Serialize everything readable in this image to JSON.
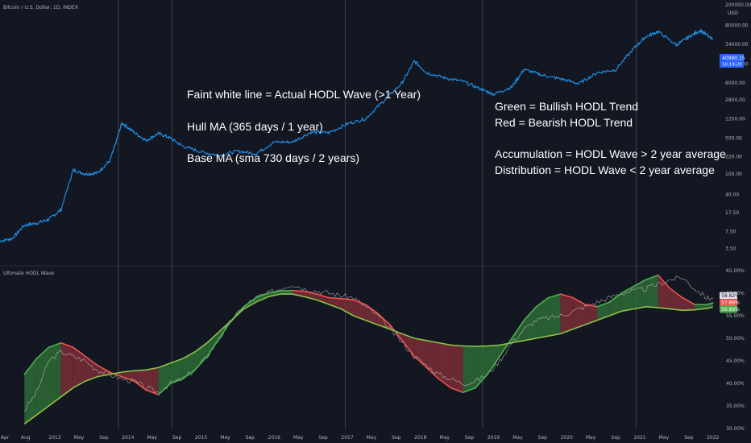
{
  "header": {
    "symbol_title": "Bitcoin / U.S. Dollar, 1D, INDEX",
    "currency": "USD"
  },
  "price_pane": {
    "price_axis_labels": [
      "200000.00",
      "80000.00",
      "34000.00",
      "14000.00",
      "6000.00",
      "2800.00",
      "1200.00",
      "500.00",
      "220.00",
      "100.00",
      "40.00",
      "17.50",
      "7.50",
      "3.50"
    ],
    "price_badge_value": "40990.15",
    "price_badge_time": "10:19:20",
    "price_badge_color": "#2962ff"
  },
  "indicator_pane": {
    "title": "Ultimate HODL Wave",
    "axis_labels": [
      "65.00%",
      "60.00%",
      "55.00%",
      "50.00%",
      "45.00%",
      "40.00%",
      "35.00%",
      "30.00%"
    ],
    "badges": [
      {
        "label": "58.82%",
        "bg": "#e0e3eb",
        "fg": "#131722"
      },
      {
        "label": "57.86%",
        "bg": "#ef5350",
        "fg": "#ffffff"
      },
      {
        "label": "56.89%",
        "bg": "#4caf50",
        "fg": "#ffffff"
      }
    ]
  },
  "annotations": {
    "left": [
      "Faint white line = Actual HODL Wave (>1 Year)",
      "Hull MA (365 days / 1 year)",
      "Base MA (sma 730 days / 2 years)"
    ],
    "right": [
      "Green = Bullish HODL Trend",
      "Red = Bearish HODL Trend",
      "Accumulation = HODL Wave > 2 year average",
      "Distribution = HODL Wave < 2 year average"
    ]
  },
  "time_axis": {
    "labels": [
      "Apr",
      "Aug",
      "2013",
      "May",
      "Sep",
      "2014",
      "May",
      "Sep",
      "2015",
      "May",
      "Sep",
      "2016",
      "May",
      "Sep",
      "2017",
      "May",
      "Sep",
      "2018",
      "May",
      "Sep",
      "2019",
      "May",
      "Sep",
      "2020",
      "May",
      "Sep",
      "2021",
      "May",
      "Sep",
      "2022"
    ]
  },
  "colors": {
    "background": "#131722",
    "price_line": "#2196f3",
    "hull_bull": "#4caf50",
    "hull_bear": "#ef5350",
    "fill_bull": "#2e6b35",
    "fill_bear": "#7a2d36",
    "hodl_line": "#c9c9c9",
    "vertical_lines": "#5d606b"
  },
  "chart_data": [
    {
      "type": "line",
      "title": "Bitcoin / U.S. Dollar, 1D, INDEX",
      "scale": "log",
      "ylim": [
        2.5,
        200000
      ],
      "x": [
        "2012-04",
        "2012-06",
        "2012-08",
        "2012-10",
        "2012-12",
        "2013-02",
        "2013-04",
        "2013-06",
        "2013-08",
        "2013-10",
        "2013-11",
        "2013-12",
        "2014-02",
        "2014-04",
        "2014-06",
        "2014-08",
        "2014-10",
        "2015-01",
        "2015-04",
        "2015-07",
        "2015-10",
        "2016-01",
        "2016-04",
        "2016-07",
        "2016-10",
        "2017-01",
        "2017-04",
        "2017-07",
        "2017-10",
        "2017-12",
        "2018-02",
        "2018-05",
        "2018-08",
        "2018-11",
        "2019-01",
        "2019-04",
        "2019-06",
        "2019-09",
        "2019-12",
        "2020-03",
        "2020-06",
        "2020-09",
        "2020-12",
        "2021-02",
        "2021-04",
        "2021-07",
        "2021-09",
        "2021-11",
        "2022-01"
      ],
      "values": [
        4.9,
        5.5,
        10,
        11,
        13,
        20,
        120,
        100,
        105,
        180,
        400,
        1000,
        650,
        450,
        620,
        500,
        350,
        270,
        230,
        280,
        250,
        420,
        420,
        650,
        640,
        950,
        1200,
        2700,
        6000,
        16000,
        9500,
        7500,
        6400,
        4500,
        3600,
        5000,
        11000,
        8500,
        7200,
        5800,
        9500,
        10800,
        28000,
        48000,
        60000,
        33000,
        47000,
        64000,
        40990
      ]
    },
    {
      "type": "line",
      "title": "Ultimate HODL Wave",
      "ylim": [
        30,
        65
      ],
      "x": [
        "2012-08",
        "2012-10",
        "2012-12",
        "2013-02",
        "2013-04",
        "2013-06",
        "2013-08",
        "2013-10",
        "2013-12",
        "2014-02",
        "2014-04",
        "2014-06",
        "2014-08",
        "2014-10",
        "2014-12",
        "2015-02",
        "2015-04",
        "2015-06",
        "2015-08",
        "2015-10",
        "2015-12",
        "2016-02",
        "2016-04",
        "2016-06",
        "2016-08",
        "2016-10",
        "2016-12",
        "2017-02",
        "2017-04",
        "2017-06",
        "2017-08",
        "2017-10",
        "2017-12",
        "2018-02",
        "2018-04",
        "2018-06",
        "2018-08",
        "2018-10",
        "2018-12",
        "2019-02",
        "2019-04",
        "2019-06",
        "2019-08",
        "2019-10",
        "2019-12",
        "2020-02",
        "2020-04",
        "2020-06",
        "2020-08",
        "2020-10",
        "2020-12",
        "2021-02",
        "2021-04",
        "2021-06",
        "2021-08",
        "2021-10",
        "2021-12",
        "2022-01"
      ],
      "series": [
        {
          "name": "Faint white line = Actual HODL Wave (>1 Year)",
          "values": [
            34,
            38,
            45,
            47,
            46,
            45,
            43,
            42,
            41,
            40.5,
            39,
            38,
            40,
            41,
            43,
            46,
            50,
            54,
            57,
            59,
            60,
            61,
            62,
            61,
            60.5,
            60,
            59.5,
            59,
            57,
            55,
            52,
            49,
            46,
            44,
            42,
            41,
            40,
            40.5,
            42,
            45,
            49,
            52,
            54,
            54.5,
            55,
            56,
            57,
            58,
            59,
            60,
            60.5,
            61,
            62,
            63,
            63.5,
            61,
            59,
            58.8
          ]
        },
        {
          "name": "Hull MA (365 days / 1 year)",
          "values": [
            42,
            45.5,
            48,
            49,
            48,
            46,
            44,
            42.5,
            41.5,
            40.5,
            38.5,
            37.5,
            40,
            41,
            43,
            46,
            50,
            54,
            57,
            59,
            60,
            60.5,
            60.6,
            60.4,
            59.8,
            59,
            58.8,
            58.5,
            57.5,
            55.5,
            53,
            49.5,
            46,
            43.5,
            41,
            39,
            38,
            39,
            42,
            46,
            50,
            54,
            57,
            59,
            59.8,
            59,
            57.5,
            57,
            58,
            60,
            61.5,
            63,
            64,
            61,
            59,
            57.5,
            57.5,
            57.86
          ]
        },
        {
          "name": "Base MA (sma 730 days / 2 years)",
          "values": [
            31,
            33,
            35,
            37,
            39,
            40.5,
            41.5,
            42,
            42.5,
            42.8,
            43,
            43.5,
            44.5,
            45.5,
            47,
            49,
            51.5,
            54,
            56.5,
            58,
            59.2,
            59.8,
            59.8,
            59.2,
            58.5,
            57.5,
            56.5,
            55,
            54,
            53,
            52,
            51,
            50,
            49.5,
            49,
            48.5,
            48.3,
            48.2,
            48.3,
            48.5,
            49,
            49.5,
            50,
            50.5,
            51,
            52,
            53,
            54,
            55,
            56,
            56.5,
            57,
            56.8,
            56.5,
            56.2,
            56.3,
            56.6,
            56.89
          ]
        }
      ]
    }
  ]
}
